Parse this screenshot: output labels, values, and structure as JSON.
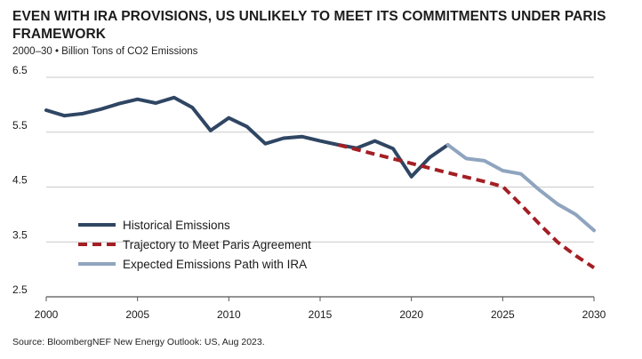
{
  "header": {
    "title": "EVEN WITH IRA PROVISIONS, US UNLIKELY TO MEET ITS COMMITMENTS UNDER PARIS FRAMEWORK",
    "subtitle": "2000–30 • Billion Tons of CO2 Emissions"
  },
  "footer": {
    "source": "Source: BloombergNEF New Energy Outlook: US, Aug 2023."
  },
  "chart_data": {
    "type": "line",
    "title": "EVEN WITH IRA PROVISIONS, US UNLIKELY TO MEET ITS COMMITMENTS UNDER PARIS FRAMEWORK",
    "subtitle": "2000–30 • Billion Tons of CO2 Emissions",
    "xlabel": "",
    "ylabel": "",
    "xlim": [
      2000,
      2030
    ],
    "ylim": [
      2.5,
      6.5
    ],
    "x_ticks": [
      2000,
      2005,
      2010,
      2015,
      2020,
      2025,
      2030
    ],
    "y_ticks": [
      2.5,
      3.5,
      4.5,
      5.5,
      6.5
    ],
    "grid": "horizontal",
    "legend_position": "bottom-left",
    "series": [
      {
        "name": "Historical Emissions",
        "color": "#2f4663",
        "style": "solid",
        "x": [
          2000,
          2001,
          2002,
          2003,
          2004,
          2005,
          2006,
          2007,
          2008,
          2009,
          2010,
          2011,
          2012,
          2013,
          2014,
          2015,
          2016,
          2017,
          2018,
          2019,
          2020,
          2021,
          2022
        ],
        "values": [
          5.9,
          5.8,
          5.84,
          5.92,
          6.02,
          6.1,
          6.03,
          6.13,
          5.95,
          5.53,
          5.76,
          5.6,
          5.29,
          5.39,
          5.42,
          5.34,
          5.27,
          5.21,
          5.34,
          5.2,
          4.69,
          5.04,
          5.27
        ]
      },
      {
        "name": "Trajectory to Meet Paris Agreement",
        "color": "#a31f24",
        "style": "dashed",
        "x": [
          2016,
          2018,
          2020,
          2022,
          2024,
          2025,
          2026,
          2027,
          2028,
          2029,
          2030
        ],
        "values": [
          5.27,
          5.1,
          4.93,
          4.76,
          4.6,
          4.51,
          4.18,
          3.83,
          3.5,
          3.25,
          3.03
        ]
      },
      {
        "name": "Expected Emissions Path with IRA",
        "color": "#8fa4bf",
        "style": "solid",
        "x": [
          2022,
          2023,
          2024,
          2025,
          2026,
          2027,
          2028,
          2029,
          2030
        ],
        "values": [
          5.27,
          5.02,
          4.98,
          4.8,
          4.74,
          4.45,
          4.19,
          4.0,
          3.71
        ]
      }
    ]
  }
}
